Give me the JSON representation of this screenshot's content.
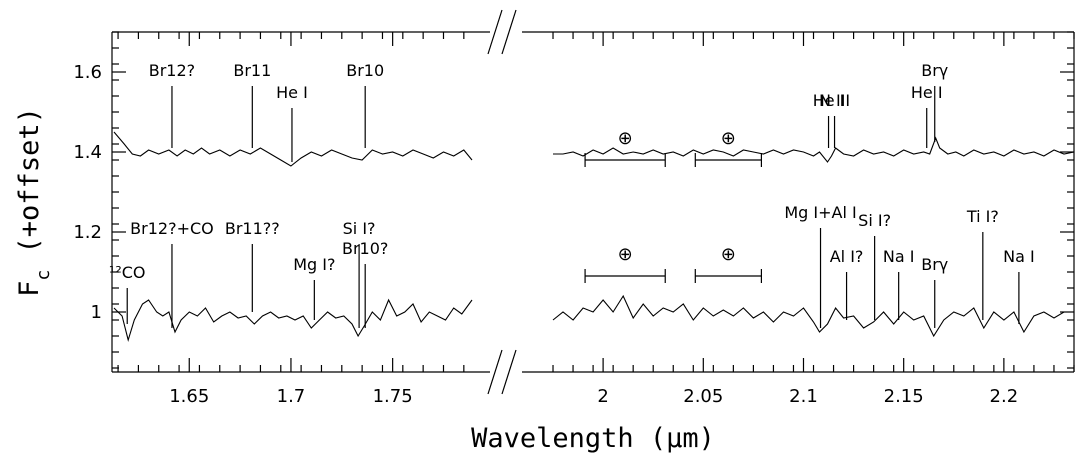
{
  "chart_data": {
    "type": "line",
    "xlabel": "Wavelength (μm)",
    "ylabel": "F_c (+offset)",
    "xlim_left": [
      1.613,
      1.79
    ],
    "xlim_right": [
      1.97,
      2.235
    ],
    "ylim": [
      0.85,
      1.7
    ],
    "x_ticks_left": [
      "1.65",
      "1.7",
      "1.75"
    ],
    "x_ticks_left_values": [
      1.65,
      1.7,
      1.75
    ],
    "x_ticks_right": [
      "2",
      "2.05",
      "2.1",
      "2.15",
      "2.2"
    ],
    "x_ticks_right_values": [
      2.0,
      2.05,
      2.1,
      2.15,
      2.2
    ],
    "y_ticks": [
      "1",
      "1.2",
      "1.4",
      "1.6"
    ],
    "y_ticks_values": [
      1.0,
      1.2,
      1.4,
      1.6
    ],
    "series": [
      {
        "level": 1.4,
        "left": {
          "x": [
            1.613,
            1.618,
            1.622,
            1.626,
            1.63,
            1.635,
            1.64,
            1.644,
            1.648,
            1.652,
            1.656,
            1.66,
            1.665,
            1.67,
            1.675,
            1.68,
            1.685,
            1.69,
            1.695,
            1.7,
            1.705,
            1.71,
            1.715,
            1.72,
            1.725,
            1.73,
            1.735,
            1.74,
            1.745,
            1.75,
            1.755,
            1.76,
            1.765,
            1.77,
            1.775,
            1.78,
            1.785,
            1.789
          ],
          "y": [
            1.45,
            1.42,
            1.395,
            1.39,
            1.405,
            1.395,
            1.405,
            1.39,
            1.405,
            1.395,
            1.41,
            1.395,
            1.405,
            1.39,
            1.405,
            1.395,
            1.41,
            1.395,
            1.38,
            1.365,
            1.385,
            1.4,
            1.39,
            1.405,
            1.395,
            1.385,
            1.38,
            1.405,
            1.395,
            1.4,
            1.39,
            1.405,
            1.395,
            1.385,
            1.4,
            1.39,
            1.405,
            1.38
          ]
        },
        "right": {
          "x": [
            1.975,
            1.98,
            1.985,
            1.99,
            1.995,
            2.0,
            2.005,
            2.01,
            2.015,
            2.02,
            2.025,
            2.03,
            2.035,
            2.04,
            2.045,
            2.05,
            2.055,
            2.06,
            2.065,
            2.07,
            2.075,
            2.08,
            2.085,
            2.09,
            2.095,
            2.1,
            2.105,
            2.108,
            2.112,
            2.114,
            2.116,
            2.12,
            2.125,
            2.13,
            2.135,
            2.14,
            2.145,
            2.15,
            2.155,
            2.16,
            2.163,
            2.166,
            2.168,
            2.172,
            2.176,
            2.18,
            2.185,
            2.19,
            2.195,
            2.2,
            2.205,
            2.21,
            2.215,
            2.22,
            2.225,
            2.23,
            2.235
          ],
          "y": [
            1.395,
            1.395,
            1.4,
            1.39,
            1.405,
            1.395,
            1.41,
            1.395,
            1.4,
            1.395,
            1.405,
            1.395,
            1.4,
            1.39,
            1.405,
            1.395,
            1.405,
            1.4,
            1.39,
            1.405,
            1.4,
            1.395,
            1.405,
            1.395,
            1.405,
            1.4,
            1.39,
            1.4,
            1.375,
            1.39,
            1.41,
            1.395,
            1.39,
            1.405,
            1.395,
            1.4,
            1.39,
            1.405,
            1.395,
            1.4,
            1.395,
            1.435,
            1.41,
            1.395,
            1.4,
            1.39,
            1.405,
            1.395,
            1.4,
            1.39,
            1.405,
            1.395,
            1.4,
            1.39,
            1.405,
            1.395,
            1.4
          ]
        }
      },
      {
        "level": 1.0,
        "left": {
          "x": [
            1.613,
            1.617,
            1.62,
            1.623,
            1.627,
            1.63,
            1.634,
            1.637,
            1.64,
            1.643,
            1.646,
            1.65,
            1.654,
            1.658,
            1.662,
            1.666,
            1.67,
            1.674,
            1.678,
            1.682,
            1.686,
            1.69,
            1.694,
            1.698,
            1.702,
            1.706,
            1.71,
            1.714,
            1.718,
            1.722,
            1.726,
            1.73,
            1.733,
            1.736,
            1.74,
            1.744,
            1.748,
            1.752,
            1.756,
            1.76,
            1.764,
            1.768,
            1.772,
            1.776,
            1.78,
            1.784,
            1.789
          ],
          "y": [
            1.01,
            0.99,
            0.93,
            0.98,
            1.02,
            1.03,
            1.0,
            0.99,
            1.0,
            0.95,
            0.98,
            1.0,
            0.99,
            1.01,
            0.975,
            0.99,
            1.0,
            0.985,
            0.99,
            0.97,
            0.99,
            1.0,
            0.985,
            0.99,
            0.98,
            0.99,
            0.96,
            0.98,
            1.0,
            0.985,
            0.99,
            0.97,
            0.94,
            0.965,
            1.0,
            0.98,
            1.03,
            0.99,
            1.0,
            1.02,
            0.975,
            1.0,
            0.99,
            0.98,
            1.01,
            0.995,
            1.03
          ]
        },
        "right": {
          "x": [
            1.975,
            1.98,
            1.985,
            1.99,
            1.995,
            2.0,
            2.005,
            2.01,
            2.015,
            2.02,
            2.025,
            2.03,
            2.035,
            2.04,
            2.045,
            2.05,
            2.055,
            2.06,
            2.065,
            2.07,
            2.075,
            2.08,
            2.085,
            2.09,
            2.095,
            2.1,
            2.105,
            2.108,
            2.112,
            2.116,
            2.12,
            2.125,
            2.13,
            2.135,
            2.14,
            2.145,
            2.15,
            2.155,
            2.16,
            2.165,
            2.17,
            2.175,
            2.18,
            2.185,
            2.19,
            2.195,
            2.2,
            2.205,
            2.21,
            2.215,
            2.22,
            2.225,
            2.23,
            2.235
          ],
          "y": [
            0.98,
            1.0,
            0.98,
            1.01,
            1.0,
            1.03,
            1.0,
            1.04,
            0.985,
            1.02,
            0.99,
            1.01,
            1.0,
            1.02,
            0.98,
            1.01,
            0.99,
            1.005,
            0.99,
            1.01,
            0.985,
            1.0,
            0.975,
            1.0,
            0.99,
            1.01,
            0.975,
            0.95,
            0.97,
            1.01,
            0.985,
            0.99,
            0.96,
            0.975,
            1.0,
            0.97,
            1.0,
            0.98,
            0.99,
            0.94,
            0.98,
            1.0,
            0.99,
            1.01,
            0.96,
            1.0,
            0.98,
            1.0,
            0.95,
            0.99,
            1.0,
            0.985,
            1.0,
            1.0
          ]
        }
      }
    ],
    "annotations_top": [
      {
        "label": "Br12?",
        "x": 1.6415,
        "y0": 1.41,
        "y1": 1.565
      },
      {
        "label": "Br11",
        "x": 1.681,
        "y0": 1.41,
        "y1": 1.565
      },
      {
        "label": "He I",
        "x": 1.7005,
        "y0": 1.375,
        "y1": 1.51
      },
      {
        "label": "Br10",
        "x": 1.7365,
        "y0": 1.41,
        "y1": 1.565
      },
      {
        "label": "He I",
        "x": 2.1125,
        "y0": 1.41,
        "y1": 1.49
      },
      {
        "label": "N III",
        "x": 2.1155,
        "y0": 1.41,
        "y1": 1.49
      },
      {
        "label": "He I",
        "x": 2.1615,
        "y0": 1.41,
        "y1": 1.51
      },
      {
        "label": "Brγ",
        "x": 2.1655,
        "y0": 1.425,
        "y1": 1.565
      }
    ],
    "annotations_bottom": [
      {
        "label": "¹²CO",
        "x": 1.6195,
        "y0": 0.97,
        "y1": 1.06
      },
      {
        "label": "Br12?+CO",
        "x": 1.6415,
        "y0": 0.96,
        "y1": 1.17
      },
      {
        "label": "Br11??",
        "x": 1.681,
        "y0": 1.0,
        "y1": 1.17
      },
      {
        "label": "Mg I?",
        "x": 1.7115,
        "y0": 0.98,
        "y1": 1.08
      },
      {
        "label": "Si I?",
        "x": 1.7335,
        "y0": 0.96,
        "y1": 1.17
      },
      {
        "label": "Br10?",
        "x": 1.7365,
        "y0": 0.96,
        "y1": 1.12
      },
      {
        "label": "Mg I+Al I",
        "x": 2.1085,
        "y0": 0.96,
        "y1": 1.21
      },
      {
        "label": "Al I?",
        "x": 2.1215,
        "y0": 0.98,
        "y1": 1.1
      },
      {
        "label": "Si I?",
        "x": 2.1355,
        "y0": 0.98,
        "y1": 1.19
      },
      {
        "label": "Na I",
        "x": 2.1475,
        "y0": 0.98,
        "y1": 1.1
      },
      {
        "label": "Brγ",
        "x": 2.1655,
        "y0": 0.96,
        "y1": 1.08
      },
      {
        "label": "Ti I?",
        "x": 2.1895,
        "y0": 0.98,
        "y1": 1.2
      },
      {
        "label": "Na I",
        "x": 2.2075,
        "y0": 0.97,
        "y1": 1.1
      }
    ],
    "telluric_bands": [
      {
        "symbol": "⊕",
        "x0": 1.991,
        "x1": 2.031,
        "y": 1.38
      },
      {
        "symbol": "⊕",
        "x0": 2.046,
        "x1": 2.079,
        "y": 1.38
      },
      {
        "symbol": "⊕",
        "x0": 1.991,
        "x1": 2.031,
        "y": 1.09
      },
      {
        "symbol": "⊕",
        "x0": 2.046,
        "x1": 2.079,
        "y": 1.09
      }
    ]
  }
}
